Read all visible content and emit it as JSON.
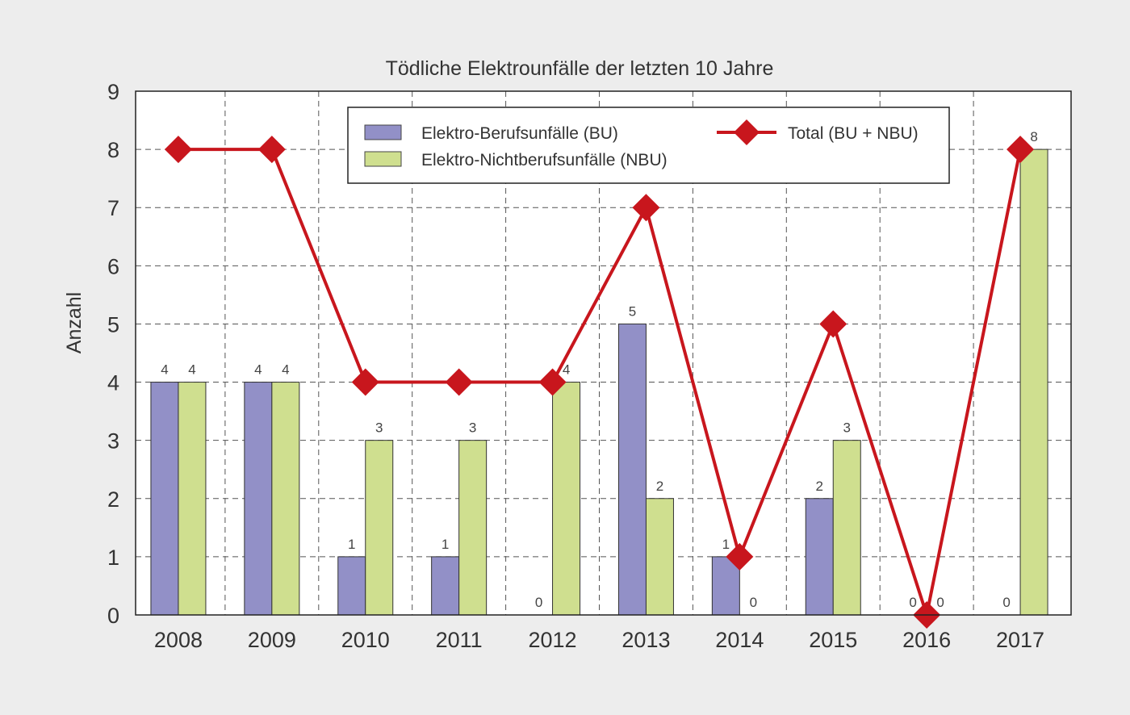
{
  "chart_data": {
    "type": "bar",
    "title": "Tödliche Elektrounfälle der letzten 10 Jahre",
    "xlabel": "",
    "ylabel": "Anzahl",
    "ylim": [
      0,
      9
    ],
    "yticks": [
      0,
      1,
      2,
      3,
      4,
      5,
      6,
      7,
      8,
      9
    ],
    "grid": true,
    "legend_position": "top-center",
    "categories": [
      "2008",
      "2009",
      "2010",
      "2011",
      "2012",
      "2013",
      "2014",
      "2015",
      "2016",
      "2017"
    ],
    "series": [
      {
        "name": "Elektro-Berufsunfälle (BU)",
        "type": "bar",
        "color": "#9290c7",
        "values": [
          4,
          4,
          1,
          1,
          0,
          5,
          1,
          2,
          0,
          0
        ]
      },
      {
        "name": "Elektro-Nichtberufsunfälle (NBU)",
        "type": "bar",
        "color": "#cfdf8f",
        "values": [
          4,
          4,
          3,
          3,
          4,
          2,
          0,
          3,
          0,
          8
        ]
      },
      {
        "name": "Total (BU + NBU)",
        "type": "line",
        "marker": "diamond",
        "color": "#c8161d",
        "values": [
          8,
          8,
          4,
          4,
          4,
          7,
          1,
          5,
          0,
          8
        ]
      }
    ]
  }
}
